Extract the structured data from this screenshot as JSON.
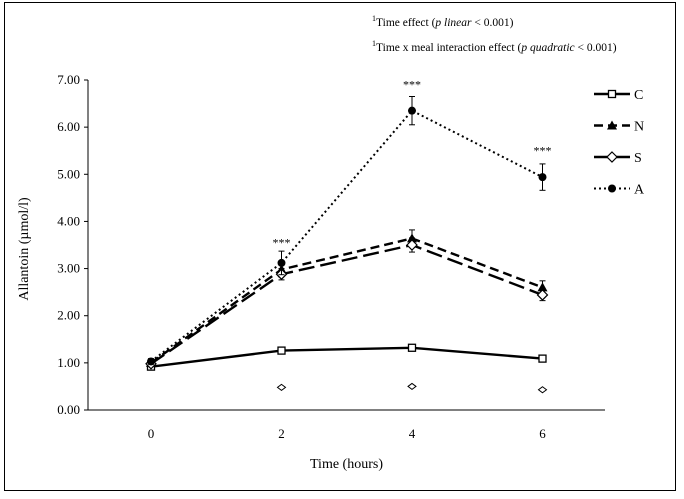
{
  "chart_data": {
    "type": "line",
    "xlabel": "Time (hours)",
    "ylabel": "Allantoin (µmol/l)",
    "x": [
      0,
      2,
      4,
      6
    ],
    "x_ticks": [
      "0",
      "2",
      "4",
      "6"
    ],
    "y_ticks": [
      "0.00",
      "1.00",
      "2.00",
      "3.00",
      "4.00",
      "5.00",
      "6.00",
      "7.00"
    ],
    "ylim": [
      0,
      7
    ],
    "annotations": [
      {
        "sup": "1",
        "text": "Time effect (",
        "italic": "p linear",
        "rest": " < 0.001)"
      },
      {
        "sup": "1",
        "text": "Time x meal interaction effect (",
        "italic": "p quadratic",
        "rest": " < 0.001)"
      }
    ],
    "significance": [
      {
        "x": 2,
        "label": "***",
        "y_data": 3.55
      },
      {
        "x": 4,
        "label": "***",
        "y_data": 6.9
      },
      {
        "x": 6,
        "label": "***",
        "y_data": 5.5
      }
    ],
    "series": [
      {
        "name": "C",
        "values": [
          0.92,
          1.26,
          1.32,
          1.09
        ],
        "err": [
          0.03,
          0.04,
          0.05,
          0.04
        ],
        "marker": "square",
        "dash": "solid"
      },
      {
        "name": "N",
        "values": [
          1.0,
          2.98,
          3.64,
          2.6
        ],
        "err": [
          0.05,
          0.12,
          0.18,
          0.14
        ],
        "marker": "triangle",
        "dash": "short"
      },
      {
        "name": "S",
        "values": [
          0.98,
          2.88,
          3.5,
          2.44
        ],
        "err": [
          0.05,
          0.12,
          0.15,
          0.12
        ],
        "marker": "diamond",
        "dash": "long"
      },
      {
        "name": "A",
        "values": [
          1.03,
          3.12,
          6.35,
          4.94
        ],
        "err": [
          0.06,
          0.25,
          0.3,
          0.28
        ],
        "marker": "circle",
        "dash": "dotted"
      }
    ],
    "baseline_markers": {
      "x": [
        2,
        4,
        6
      ],
      "values": [
        0.48,
        0.5,
        0.43
      ]
    },
    "legend": "right",
    "grid": false
  }
}
